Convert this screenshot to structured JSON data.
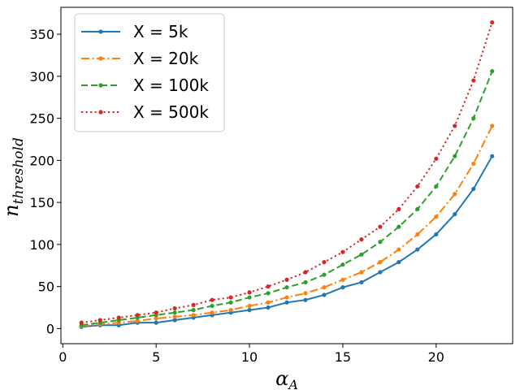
{
  "chart_data": {
    "type": "line",
    "title": "",
    "xlabel": "α_A",
    "xlabel_main": "α",
    "xlabel_sub": "A",
    "ylabel": "n_threshold",
    "ylabel_main": "n",
    "ylabel_sub": "threshold",
    "xlim": [
      -0.1,
      24.1
    ],
    "ylim": [
      -18,
      382
    ],
    "xticks": [
      0,
      5,
      10,
      15,
      20
    ],
    "yticks": [
      0,
      50,
      100,
      150,
      200,
      250,
      300,
      350
    ],
    "legend_position": "top-left",
    "x": [
      1,
      2,
      3,
      4,
      5,
      6,
      7,
      8,
      9,
      10,
      11,
      12,
      13,
      14,
      15,
      16,
      17,
      18,
      19,
      20,
      21,
      22,
      23
    ],
    "series": [
      {
        "name": "X = 5k",
        "color": "#1f77b4",
        "linestyle": "solid",
        "values": [
          2,
          4,
          4,
          7,
          7,
          10,
          13,
          16,
          19,
          22,
          25,
          31,
          34,
          40,
          49,
          55,
          67,
          79,
          94,
          112,
          136,
          166,
          205
        ]
      },
      {
        "name": "X = 20k",
        "color": "#ff7f0e",
        "linestyle": "dashdot",
        "values": [
          3,
          5,
          7,
          9,
          12,
          14,
          16,
          19,
          22,
          27,
          31,
          37,
          42,
          49,
          58,
          67,
          79,
          94,
          112,
          133,
          160,
          196,
          241
        ]
      },
      {
        "name": "X = 100k",
        "color": "#2ca02c",
        "linestyle": "dashed",
        "values": [
          4,
          7,
          10,
          13,
          16,
          19,
          22,
          27,
          31,
          37,
          42,
          49,
          55,
          64,
          76,
          88,
          103,
          121,
          142,
          169,
          205,
          250,
          306
        ]
      },
      {
        "name": "X = 500k",
        "color": "#d62728",
        "linestyle": "dotted",
        "values": [
          7,
          10,
          13,
          16,
          19,
          24,
          28,
          34,
          37,
          43,
          50,
          58,
          67,
          79,
          91,
          106,
          121,
          142,
          169,
          202,
          241,
          295,
          364
        ]
      }
    ]
  }
}
